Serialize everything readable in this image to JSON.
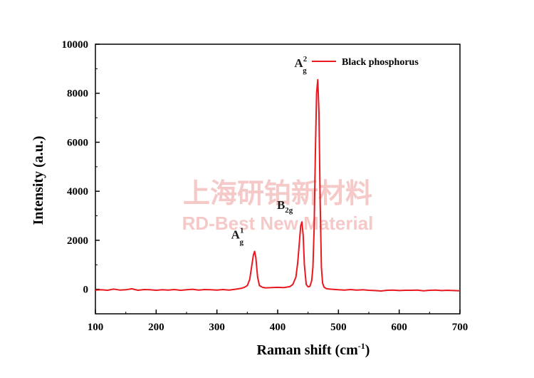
{
  "chart_data": {
    "type": "line",
    "xlabel": "Raman shift (cm",
    "xlabel_sup": "-1",
    "xlabel_end": ")",
    "ylabel": "Intensity (a.u.)",
    "xlim": [
      100,
      700
    ],
    "ylim": [
      -1000,
      10000
    ],
    "xticks": [
      100,
      200,
      300,
      400,
      500,
      600,
      700
    ],
    "yticks": [
      0,
      2000,
      4000,
      6000,
      8000,
      10000
    ],
    "grid": false,
    "legend_position": "top-right",
    "series": [
      {
        "name": "Black phosphorus",
        "color": "#e8191f",
        "x": [
          100,
          110,
          120,
          130,
          140,
          150,
          160,
          170,
          180,
          190,
          200,
          210,
          220,
          230,
          240,
          250,
          260,
          270,
          280,
          290,
          300,
          310,
          320,
          330,
          340,
          345,
          350,
          354,
          357,
          360,
          362,
          364,
          367,
          370,
          375,
          380,
          390,
          400,
          410,
          420,
          425,
          430,
          433,
          436,
          438,
          440,
          442,
          444,
          447,
          450,
          453,
          456,
          458,
          460,
          462,
          464,
          466,
          468,
          470,
          472,
          474,
          476,
          478,
          480,
          485,
          490,
          500,
          510,
          520,
          530,
          540,
          550,
          560,
          570,
          580,
          590,
          600,
          610,
          620,
          630,
          640,
          650,
          660,
          670,
          680,
          690,
          700
        ],
        "y": [
          -30,
          -20,
          -40,
          10,
          -30,
          -20,
          20,
          -40,
          -10,
          -20,
          -40,
          -20,
          -30,
          -10,
          -40,
          -20,
          0,
          -30,
          -10,
          -20,
          -30,
          -10,
          -30,
          0,
          40,
          80,
          150,
          400,
          900,
          1400,
          1550,
          1300,
          500,
          150,
          80,
          60,
          70,
          80,
          70,
          110,
          200,
          500,
          1100,
          2000,
          2600,
          2750,
          2200,
          1000,
          200,
          100,
          120,
          350,
          900,
          2500,
          5500,
          8000,
          8550,
          7200,
          3500,
          900,
          250,
          100,
          60,
          30,
          10,
          0,
          -20,
          -30,
          -10,
          -30,
          -20,
          -40,
          -50,
          -70,
          -40,
          -30,
          -50,
          -40,
          -40,
          -30,
          -60,
          -40,
          -30,
          -50,
          -40,
          -50,
          -60
        ]
      }
    ],
    "annotations": [
      {
        "base": "A",
        "sup": "1",
        "sub": "g",
        "x": 362
      },
      {
        "base": "B",
        "sup": "",
        "sub": "2g",
        "x": 440
      },
      {
        "base": "A",
        "sup": "2",
        "sub": "g",
        "x": 466
      }
    ]
  },
  "watermark": {
    "line1": "上海研铂新材料",
    "line2": "RD-Best New Material"
  }
}
